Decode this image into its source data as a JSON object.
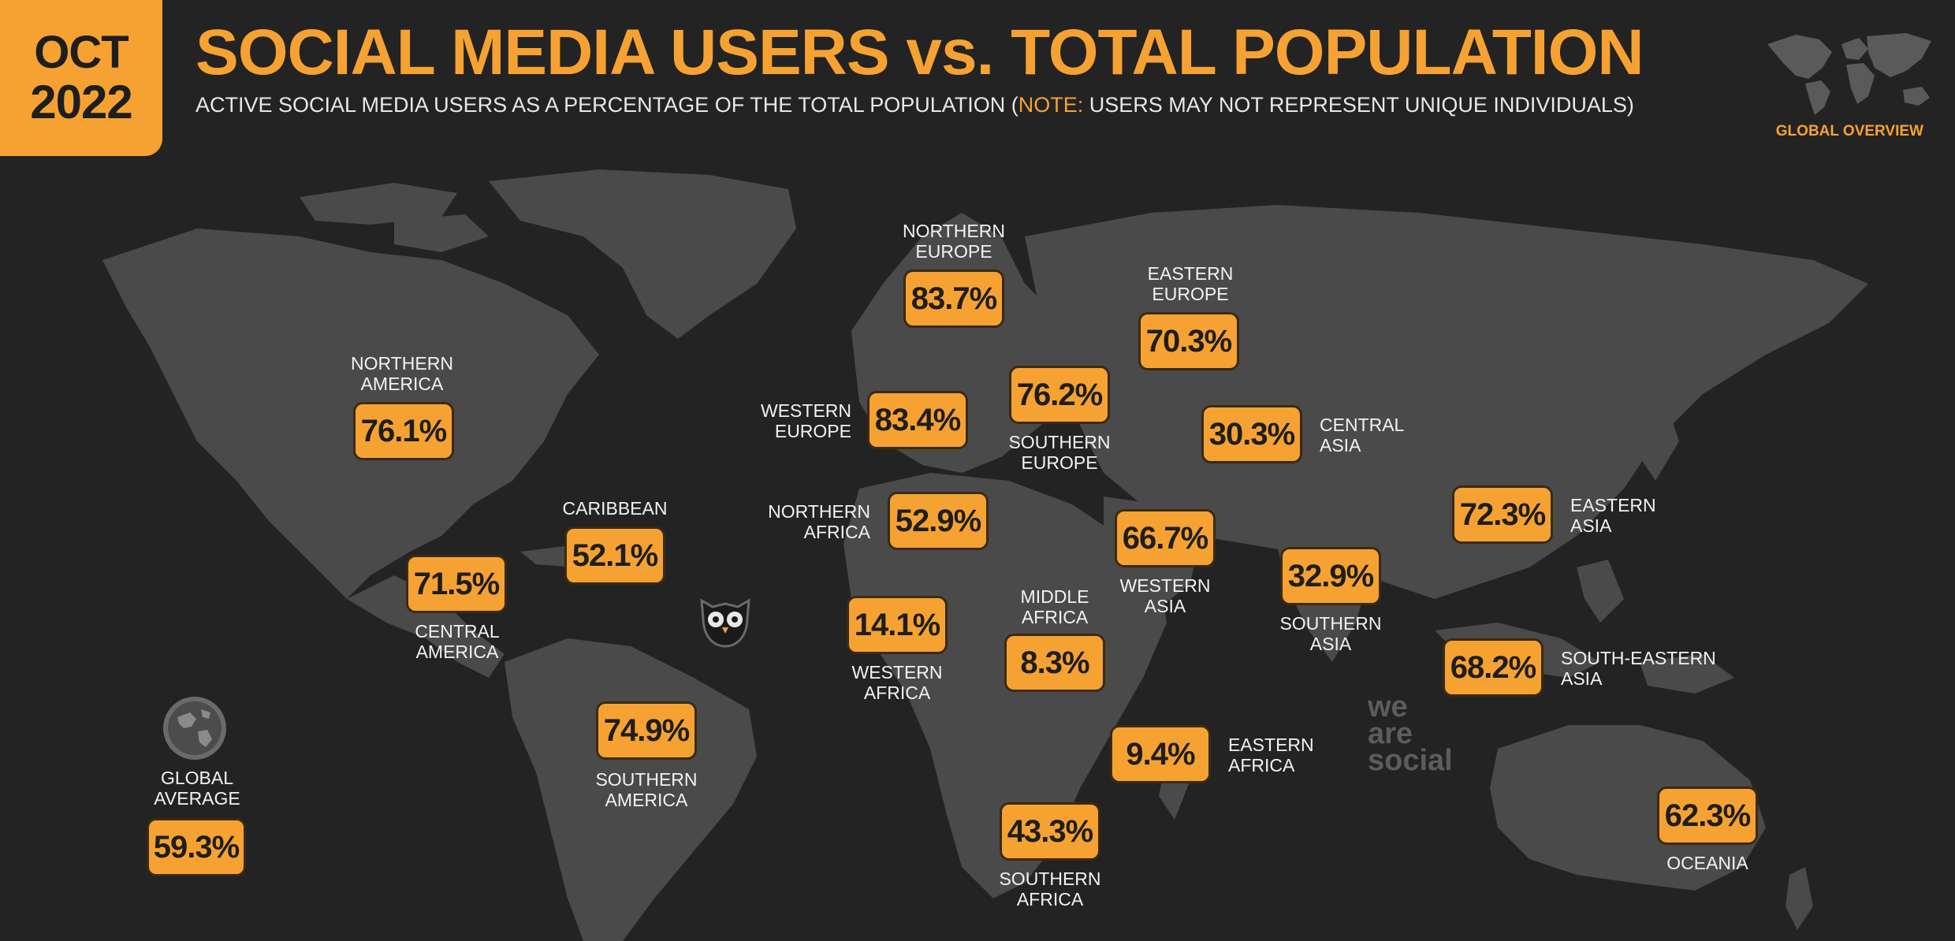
{
  "header": {
    "date_month": "OCT",
    "date_year": "2022",
    "title": "SOCIAL MEDIA USERS vs. TOTAL POPULATION",
    "subtitle_pre": "ACTIVE SOCIAL MEDIA USERS AS A PERCENTAGE OF THE TOTAL POPULATION (",
    "subtitle_note": "NOTE:",
    "subtitle_post": " USERS MAY NOT REPRESENT UNIQUE INDIVIDUALS)",
    "section": "GLOBAL OVERVIEW"
  },
  "colors": {
    "accent": "#F6A233",
    "background": "#232323",
    "land": "#4a4a4a"
  },
  "icons": [
    "globe-icon",
    "owl-icon",
    "mini-world-map-icon"
  ],
  "watermark": "we\nare\nsocial",
  "global_average": {
    "label": "GLOBAL\nAVERAGE",
    "value": "59.3%"
  },
  "regions": [
    {
      "key": "northern-america",
      "label": "NORTHERN\nAMERICA",
      "value": "76.1%"
    },
    {
      "key": "central-america",
      "label": "CENTRAL\nAMERICA",
      "value": "71.5%"
    },
    {
      "key": "caribbean",
      "label": "CARIBBEAN",
      "value": "52.1%"
    },
    {
      "key": "southern-america",
      "label": "SOUTHERN\nAMERICA",
      "value": "74.9%"
    },
    {
      "key": "northern-europe",
      "label": "NORTHERN\nEUROPE",
      "value": "83.7%"
    },
    {
      "key": "western-europe",
      "label": "WESTERN\nEUROPE",
      "value": "83.4%"
    },
    {
      "key": "southern-europe",
      "label": "SOUTHERN\nEUROPE",
      "value": "76.2%"
    },
    {
      "key": "eastern-europe",
      "label": "EASTERN\nEUROPE",
      "value": "70.3%"
    },
    {
      "key": "northern-africa",
      "label": "NORTHERN\nAFRICA",
      "value": "52.9%"
    },
    {
      "key": "western-africa",
      "label": "WESTERN\nAFRICA",
      "value": "14.1%"
    },
    {
      "key": "middle-africa",
      "label": "MIDDLE\nAFRICA",
      "value": "8.3%"
    },
    {
      "key": "eastern-africa",
      "label": "EASTERN\nAFRICA",
      "value": "9.4%"
    },
    {
      "key": "southern-africa",
      "label": "SOUTHERN\nAFRICA",
      "value": "43.3%"
    },
    {
      "key": "western-asia",
      "label": "WESTERN\nASIA",
      "value": "66.7%"
    },
    {
      "key": "central-asia",
      "label": "CENTRAL\nASIA",
      "value": "30.3%"
    },
    {
      "key": "southern-asia",
      "label": "SOUTHERN\nASIA",
      "value": "32.9%"
    },
    {
      "key": "eastern-asia",
      "label": "EASTERN\nASIA",
      "value": "72.3%"
    },
    {
      "key": "south-eastern-asia",
      "label": "SOUTH-EASTERN\nASIA",
      "value": "68.2%"
    },
    {
      "key": "oceania",
      "label": "OCEANIA",
      "value": "62.3%"
    }
  ]
}
